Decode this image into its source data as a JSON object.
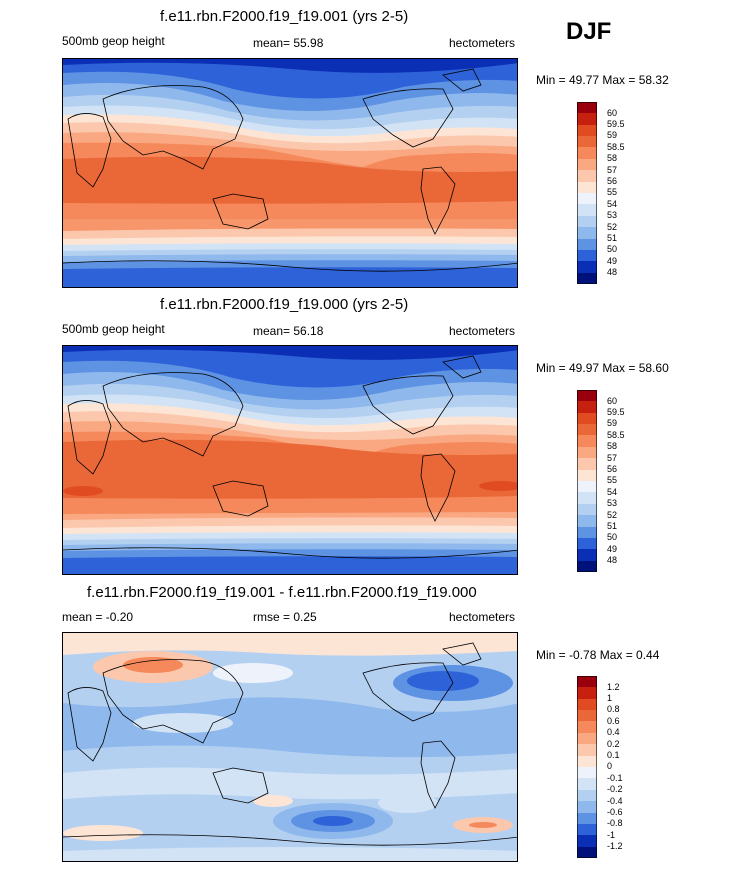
{
  "season": "DJF",
  "panels": [
    {
      "title": "f.e11.rbn.F2000.f19_f19.001 (yrs 2-5)",
      "left_label": "500mb geop height",
      "center_label": "mean=  55.98",
      "units": "hectometers",
      "minmax": "Min =  49.77 Max =  58.32",
      "colorbar": {
        "labels": [
          "60",
          "59.5",
          "59",
          "58.5",
          "58",
          "57",
          "56",
          "55",
          "54",
          "53",
          "52",
          "51",
          "50",
          "49",
          "48"
        ],
        "colors": [
          "#99000d",
          "#c8200f",
          "#e04b21",
          "#ea6838",
          "#f5895b",
          "#faa882",
          "#fbc8ae",
          "#fde5d6",
          "#eef3fb",
          "#d2e3f6",
          "#b4d0f1",
          "#8fb8ec",
          "#5e92e3",
          "#2e62d8",
          "#0a2fb5",
          "#00127a"
        ]
      }
    },
    {
      "title": "f.e11.rbn.F2000.f19_f19.000 (yrs 2-5)",
      "left_label": "500mb geop height",
      "center_label": "mean=  56.18",
      "units": "hectometers",
      "minmax": "Min =  49.97 Max =  58.60",
      "colorbar": {
        "labels": [
          "60",
          "59.5",
          "59",
          "58.5",
          "58",
          "57",
          "56",
          "55",
          "54",
          "53",
          "52",
          "51",
          "50",
          "49",
          "48"
        ],
        "colors": [
          "#99000d",
          "#c8200f",
          "#e04b21",
          "#ea6838",
          "#f5895b",
          "#faa882",
          "#fbc8ae",
          "#fde5d6",
          "#eef3fb",
          "#d2e3f6",
          "#b4d0f1",
          "#8fb8ec",
          "#5e92e3",
          "#2e62d8",
          "#0a2fb5",
          "#00127a"
        ]
      }
    },
    {
      "title": "f.e11.rbn.F2000.f19_f19.001 - f.e11.rbn.F2000.f19_f19.000",
      "left_label": "mean =  -0.20",
      "center_label": "rmse =   0.25",
      "units": "hectometers",
      "minmax": "Min =  -0.78 Max =   0.44",
      "colorbar": {
        "labels": [
          "1.2",
          "1",
          "0.8",
          "0.6",
          "0.4",
          "0.2",
          "0.1",
          "0",
          "-0.1",
          "-0.2",
          "-0.4",
          "-0.6",
          "-0.8",
          "-1",
          "-1.2"
        ],
        "colors": [
          "#99000d",
          "#c8200f",
          "#e04b21",
          "#ea6838",
          "#f5895b",
          "#faa882",
          "#fbc8ae",
          "#fde5d6",
          "#eef3fb",
          "#d2e3f6",
          "#b4d0f1",
          "#8fb8ec",
          "#5e92e3",
          "#2e62d8",
          "#0a2fb5",
          "#00127a"
        ]
      }
    }
  ],
  "chart_data": {
    "type": "heatmap",
    "description_fields": [
      "title",
      "left_label",
      "center_label",
      "units",
      "minmax"
    ],
    "panels": [
      {
        "variable": "500mb geop height",
        "units": "hectometers",
        "mean": 55.98,
        "min": 49.77,
        "max": 58.32,
        "levels": [
          48,
          49,
          50,
          51,
          52,
          53,
          54,
          55,
          56,
          57,
          58,
          58.5,
          59,
          59.5,
          60
        ]
      },
      {
        "variable": "500mb geop height",
        "units": "hectometers",
        "mean": 56.18,
        "min": 49.97,
        "max": 58.6,
        "levels": [
          48,
          49,
          50,
          51,
          52,
          53,
          54,
          55,
          56,
          57,
          58,
          58.5,
          59,
          59.5,
          60
        ]
      },
      {
        "variable": "difference",
        "units": "hectometers",
        "mean": -0.2,
        "rmse": 0.25,
        "min": -0.78,
        "max": 0.44,
        "levels": [
          -1.2,
          -1,
          -0.8,
          -0.6,
          -0.4,
          -0.2,
          -0.1,
          0,
          0.1,
          0.2,
          0.4,
          0.6,
          0.8,
          1,
          1.2
        ]
      }
    ]
  }
}
